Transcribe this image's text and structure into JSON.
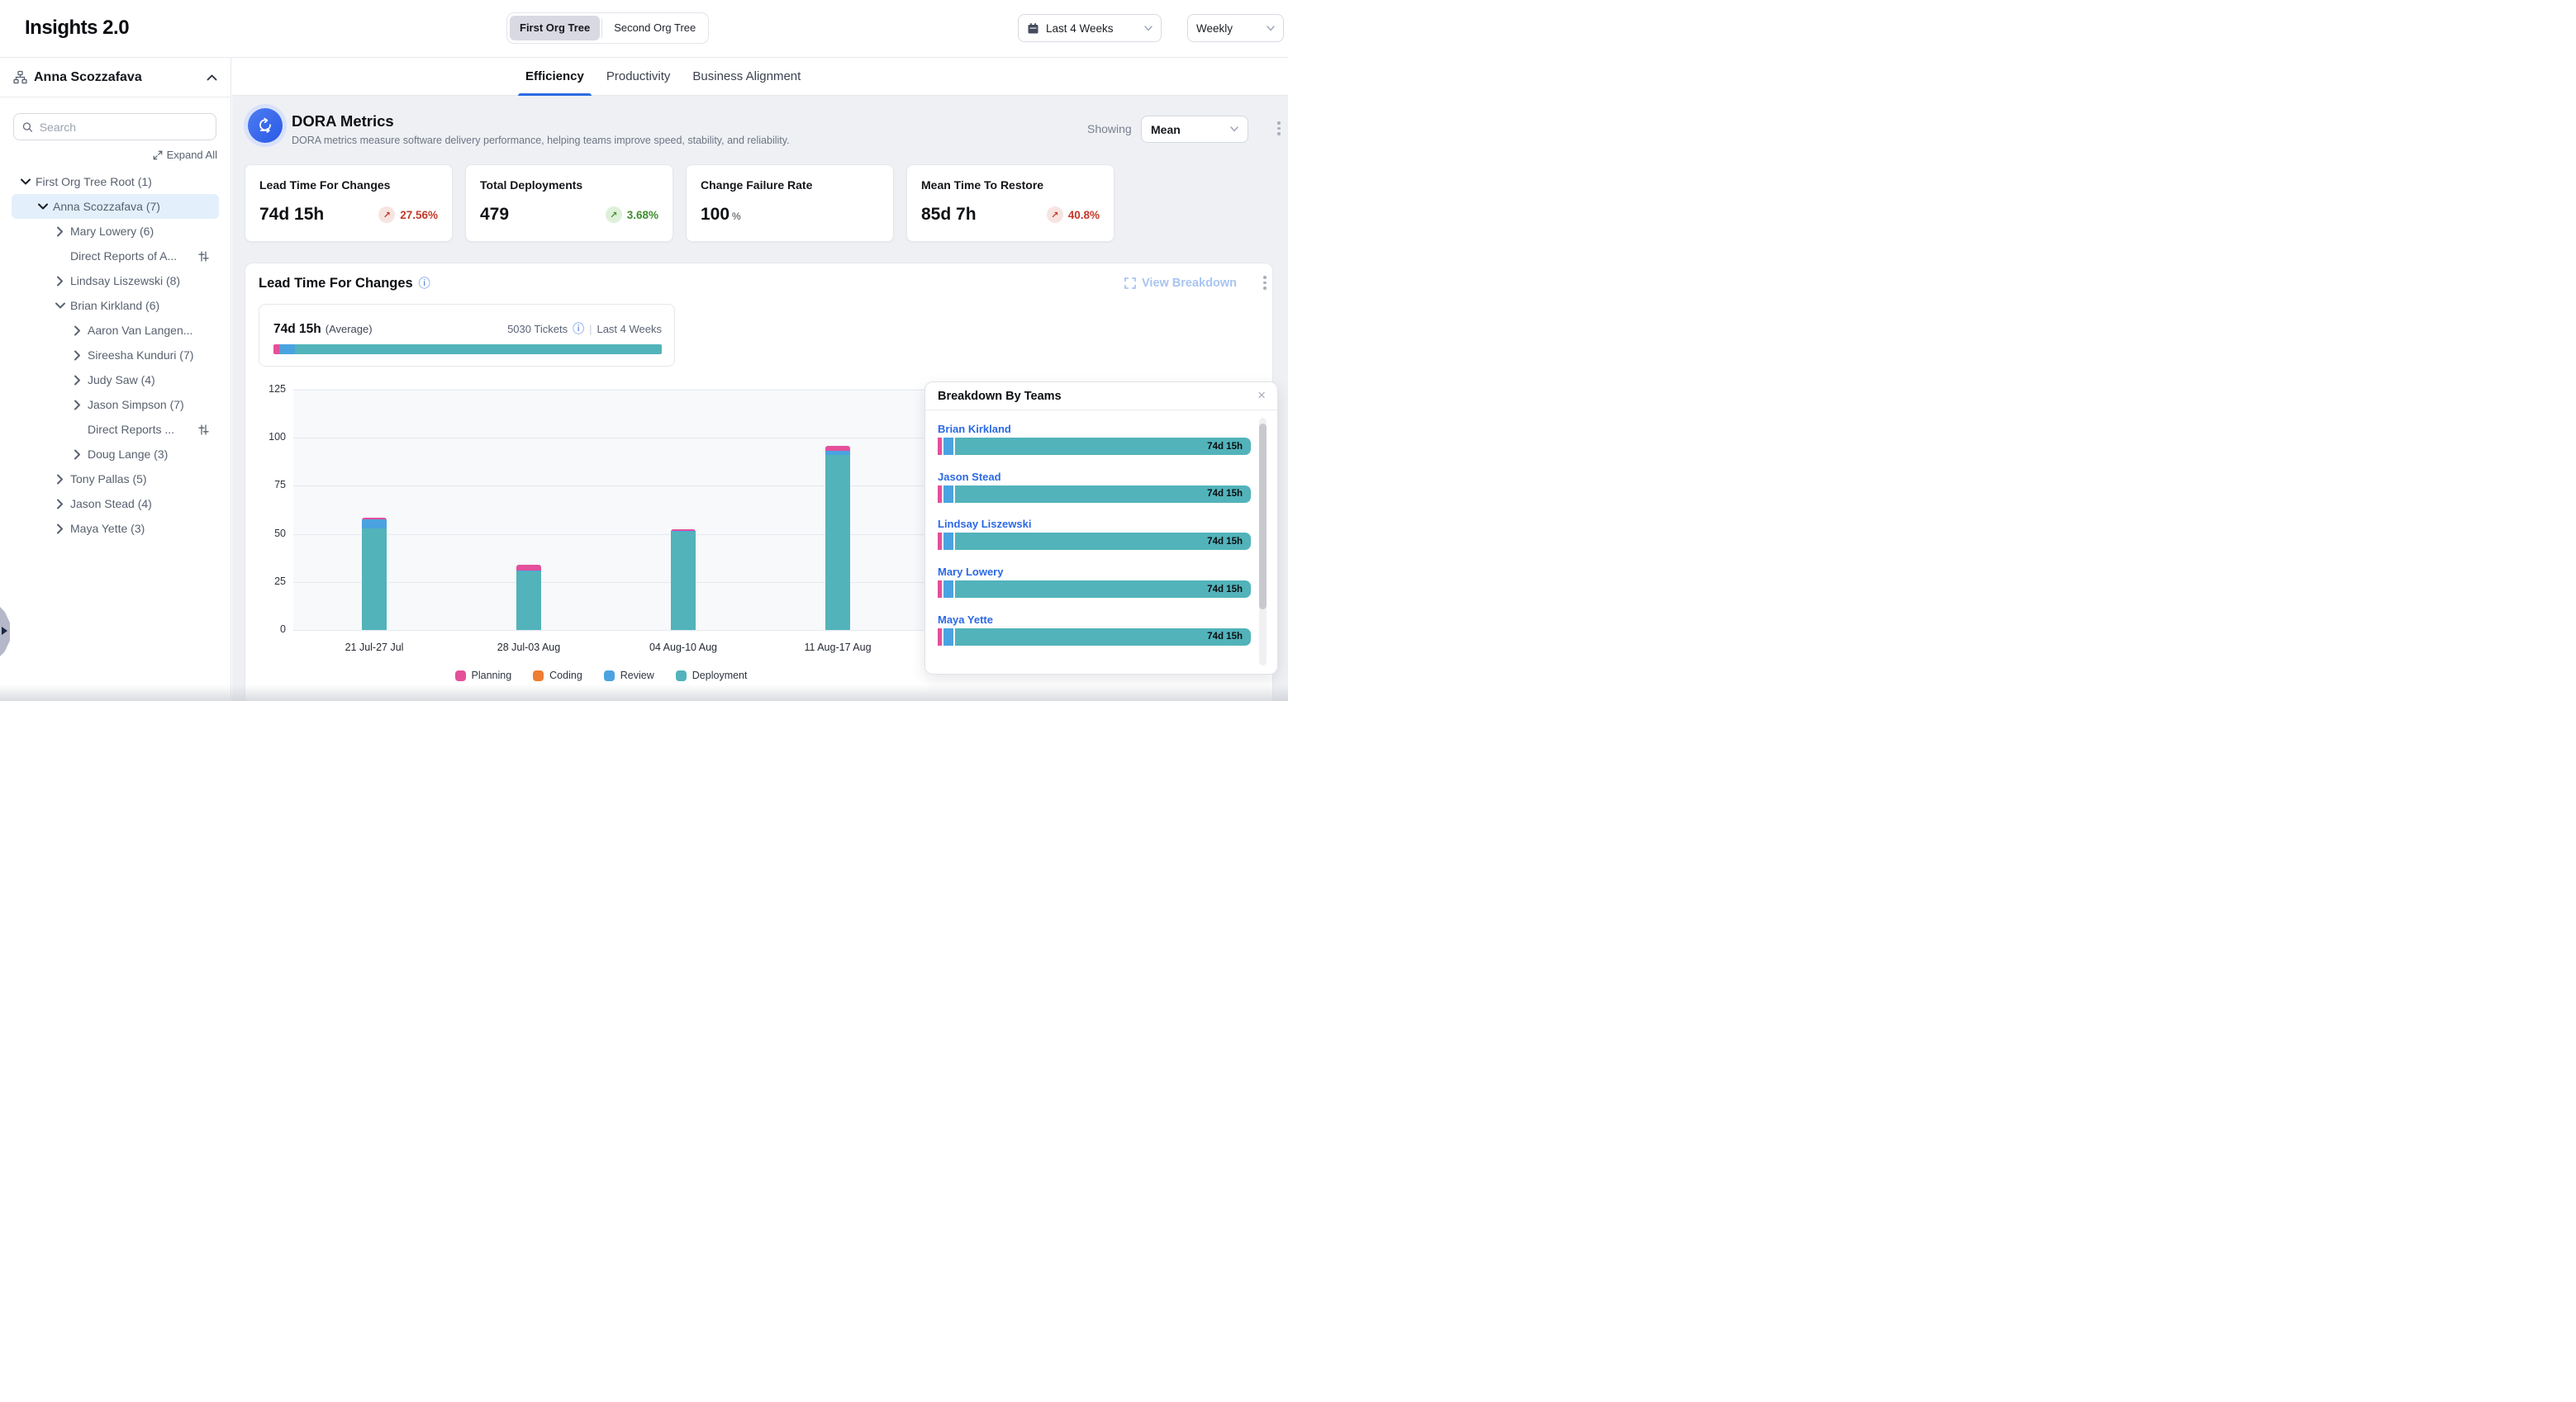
{
  "app": {
    "title": "Insights 2.0"
  },
  "header": {
    "org_tree_toggle": {
      "options": [
        "First Org Tree",
        "Second Org Tree"
      ],
      "selected": "First Org Tree"
    },
    "date_range": "Last 4 Weeks",
    "granularity": "Weekly"
  },
  "sidebar": {
    "user": "Anna Scozzafava",
    "search_placeholder": "Search",
    "expand_all_label": "Expand All",
    "tree": [
      {
        "label": "First Org Tree Root (1)",
        "level": 0,
        "state": "expanded",
        "dark_chevron": true
      },
      {
        "label": "Anna Scozzafava (7)",
        "level": 1,
        "state": "expanded",
        "selected": true,
        "dark_chevron": true
      },
      {
        "label": "Mary Lowery (6)",
        "level": 2,
        "state": "collapsed"
      },
      {
        "label": "Direct Reports of A...",
        "level": 2,
        "state": "leaf",
        "filter_icon": true
      },
      {
        "label": "Lindsay Liszewski (8)",
        "level": 2,
        "state": "collapsed"
      },
      {
        "label": "Brian Kirkland (6)",
        "level": 2,
        "state": "expanded"
      },
      {
        "label": "Aaron Van Langen...",
        "level": 3,
        "state": "collapsed"
      },
      {
        "label": "Sireesha Kunduri (7)",
        "level": 3,
        "state": "collapsed"
      },
      {
        "label": "Judy Saw (4)",
        "level": 3,
        "state": "collapsed"
      },
      {
        "label": "Jason Simpson (7)",
        "level": 3,
        "state": "collapsed"
      },
      {
        "label": "Direct Reports ...",
        "level": 3,
        "state": "leaf",
        "filter_icon": true
      },
      {
        "label": "Doug Lange (3)",
        "level": 3,
        "state": "collapsed"
      },
      {
        "label": "Tony Pallas (5)",
        "level": 2,
        "state": "collapsed"
      },
      {
        "label": "Jason Stead (4)",
        "level": 2,
        "state": "collapsed"
      },
      {
        "label": "Maya Yette (3)",
        "level": 2,
        "state": "collapsed"
      }
    ]
  },
  "tabs": [
    {
      "label": "Efficiency",
      "active": true
    },
    {
      "label": "Productivity",
      "active": false
    },
    {
      "label": "Business Alignment",
      "active": false
    }
  ],
  "dora": {
    "title": "DORA Metrics",
    "description": "DORA metrics measure software delivery performance, helping teams improve speed, stability, and reliability.",
    "showing_label": "Showing",
    "showing_value": "Mean"
  },
  "metric_cards": [
    {
      "title": "Lead Time For Changes",
      "value": "74d 15h",
      "delta": "27.56%",
      "tone": "bad"
    },
    {
      "title": "Total Deployments",
      "value": "479",
      "delta": "3.68%",
      "tone": "good"
    },
    {
      "title": "Change Failure Rate",
      "value": "100",
      "suffix": "%"
    },
    {
      "title": "Mean Time To Restore",
      "value": "85d 7h",
      "delta": "40.8%",
      "tone": "bad"
    }
  ],
  "lead_section": {
    "title": "Lead Time For Changes",
    "view_breakdown_label": "View Breakdown",
    "average_value": "74d 15h",
    "average_label": "(Average)",
    "tickets": "5030 Tickets",
    "separator": "|",
    "range": "Last 4 Weeks",
    "mini_bar_pct": {
      "planning": 1.5,
      "coding": 0,
      "review": 4.0,
      "deployment": 94.5
    }
  },
  "chart_data": {
    "type": "bar",
    "stacked": true,
    "title": "Lead Time For Changes",
    "categories": [
      "21 Jul-27 Jul",
      "28 Jul-03 Aug",
      "04 Aug-10 Aug",
      "11 Aug-17 Aug"
    ],
    "series": [
      {
        "name": "Planning",
        "color": "#e4509a",
        "values": [
          1.0,
          3.0,
          1.0,
          2.5
        ]
      },
      {
        "name": "Coding",
        "color": "#ef7d33",
        "values": [
          0,
          0,
          0,
          0
        ]
      },
      {
        "name": "Review",
        "color": "#4aa3e0",
        "values": [
          4.5,
          0.5,
          0.5,
          2.2
        ]
      },
      {
        "name": "Deployment",
        "color": "#52b3ba",
        "values": [
          53,
          30.5,
          51,
          91
        ]
      }
    ],
    "ylim": [
      0,
      125
    ],
    "yticks": [
      0,
      25,
      50,
      75,
      100,
      125
    ],
    "grid": true,
    "legend_position": "bottom",
    "legend": [
      "Planning",
      "Coding",
      "Review",
      "Deployment"
    ]
  },
  "breakdown_panel": {
    "title": "Breakdown By Teams",
    "teams": [
      {
        "name": "Brian Kirkland",
        "value": "74d 15h"
      },
      {
        "name": "Jason Stead",
        "value": "74d 15h"
      },
      {
        "name": "Lindsay Liszewski",
        "value": "74d 15h"
      },
      {
        "name": "Mary Lowery",
        "value": "74d 15h"
      },
      {
        "name": "Maya Yette",
        "value": "74d 15h"
      }
    ]
  },
  "colors": {
    "planning": "#e4509a",
    "coding": "#ef7d33",
    "review": "#4aa3e0",
    "deployment": "#52b3ba",
    "accent_blue": "#2e6be2",
    "bad_red": "#c23a2b",
    "good_green": "#3e8e2e"
  }
}
